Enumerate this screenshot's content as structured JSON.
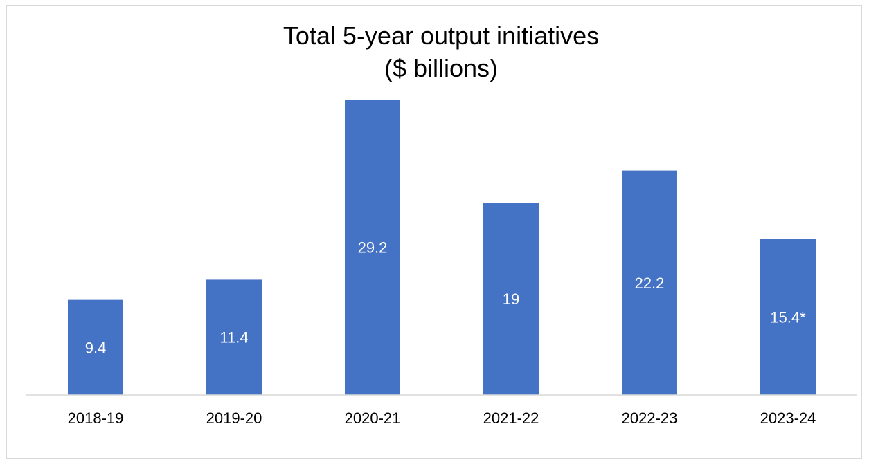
{
  "chart_data": {
    "type": "bar",
    "title": "Total 5-year output initiatives",
    "subtitle": "($ billions)",
    "categories": [
      "2018-19",
      "2019-20",
      "2020-21",
      "2021-22",
      "2022-23",
      "2023-24"
    ],
    "values": [
      9.4,
      11.4,
      29.2,
      19,
      22.2,
      15.4
    ],
    "data_labels": [
      "9.4",
      "11.4",
      "29.2",
      "19",
      "22.2",
      "15.4*"
    ],
    "xlabel": "",
    "ylabel": "",
    "ylim": [
      0,
      31
    ],
    "grid": false,
    "legend": "none",
    "bar_color": "#4472c4"
  }
}
